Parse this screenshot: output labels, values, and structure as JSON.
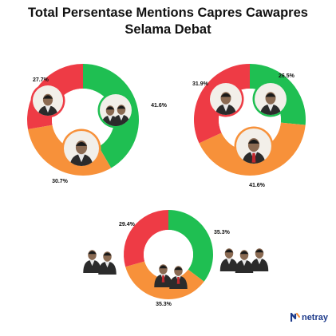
{
  "title_line1": "Total Persentase Mentions Capres Cawapres",
  "title_line2": "Selama Debat",
  "brand": "netray",
  "colors": {
    "red": "#ee3b45",
    "green": "#1fbf52",
    "orange": "#f7913a",
    "face": "#8a6a52",
    "suit": "#2b2b2b",
    "shirt": "#e8e8e8",
    "tie": "#c0282d",
    "brand": "#1d3a8a"
  },
  "chart_data": [
    {
      "type": "pie",
      "slices": [
        {
          "value": 41.6,
          "label": "41.6%",
          "color": "#1fbf52"
        },
        {
          "value": 30.7,
          "label": "30.7%",
          "color": "#f7913a"
        },
        {
          "value": 27.7,
          "label": "27.7%",
          "color": "#ee3b45"
        }
      ]
    },
    {
      "type": "pie",
      "slices": [
        {
          "value": 26.5,
          "label": "26.5%",
          "color": "#1fbf52"
        },
        {
          "value": 41.6,
          "label": "41.6%",
          "color": "#f7913a"
        },
        {
          "value": 31.9,
          "label": "31.9%",
          "color": "#ee3b45"
        }
      ]
    },
    {
      "type": "pie",
      "slices": [
        {
          "value": 35.3,
          "label": "35.3%",
          "color": "#1fbf52"
        },
        {
          "value": 35.3,
          "label": "35.3%",
          "color": "#f7913a"
        },
        {
          "value": 29.4,
          "label": "29.4%",
          "color": "#ee3b45"
        }
      ]
    }
  ]
}
